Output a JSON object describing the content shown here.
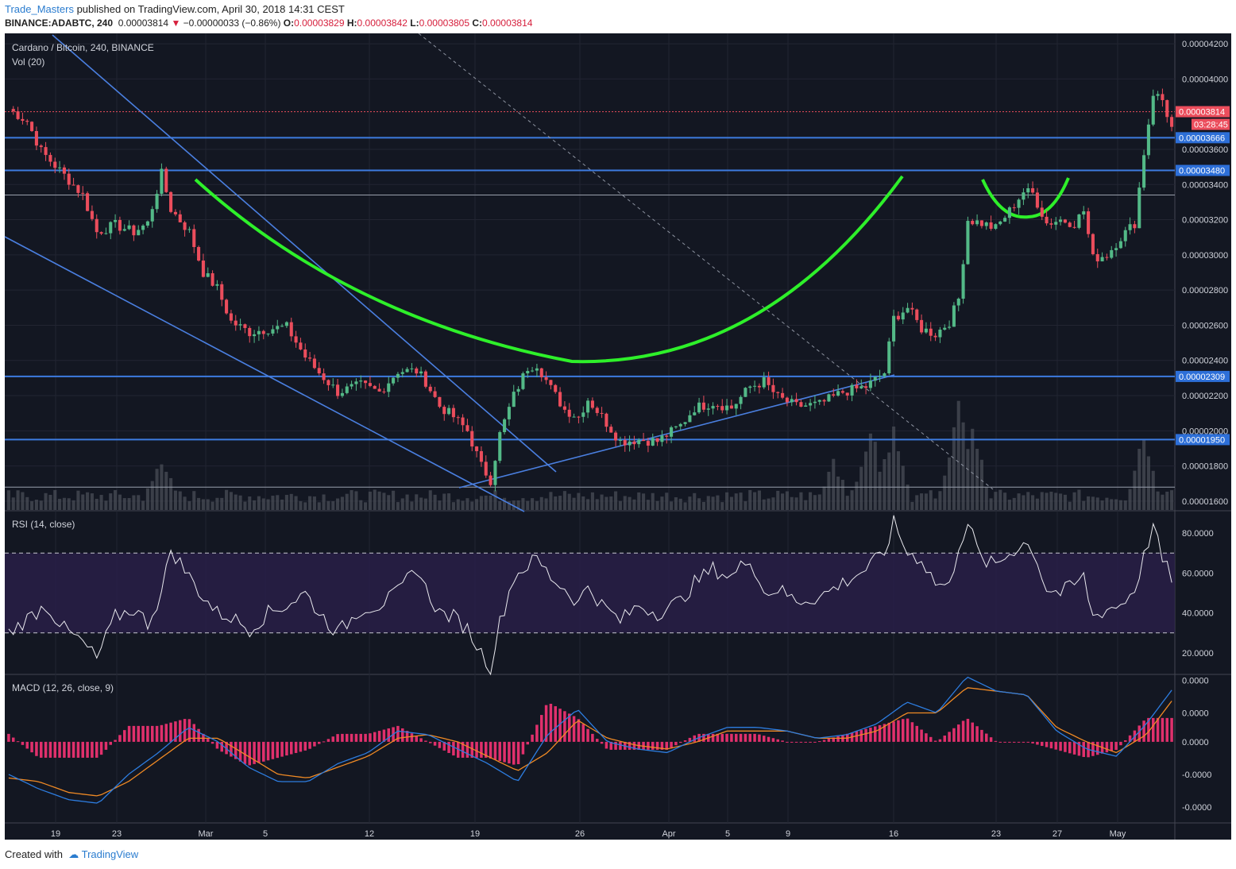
{
  "header": {
    "username": "Trade_Masters",
    "published_text": "published on TradingView.com, April 30, 2018 14:31 CEST",
    "symbol": "BINANCE:ADABTC, 240",
    "last_price": "0.00003814",
    "change": "−0.00000033 (−0.86%)",
    "o_label": "O:",
    "o_value": "0.00003829",
    "h_label": "H:",
    "h_value": "0.00003842",
    "l_label": "L:",
    "l_value": "0.00003805",
    "c_label": "C:",
    "c_value": "0.00003814"
  },
  "footer": {
    "created_with": "Created with",
    "brand": "TradingView"
  },
  "chart_data": [
    {
      "type": "candlestick",
      "title": "Cardano / Bitcoin, 240, BINANCE",
      "indicator_label": "Vol (20)",
      "ylim": [
        1.55e-05,
        4.25e-05
      ],
      "y_ticks": [
        "0.00004200",
        "0.00004000",
        "0.00003600",
        "0.00003400",
        "0.00003200",
        "0.00003000",
        "0.00002800",
        "0.00002600",
        "0.00002400",
        "0.00002200",
        "0.00002000",
        "0.00001800",
        "0.00001600"
      ],
      "x_ticks": [
        "19",
        "23",
        "Mar",
        "5",
        "12",
        "19",
        "26",
        "Apr",
        "5",
        "9",
        "16",
        "23",
        "27",
        "May"
      ],
      "price_path": [
        [
          0,
          3.83e-05
        ],
        [
          4,
          3.76e-05
        ],
        [
          7,
          3.59e-05
        ],
        [
          11,
          3.48e-05
        ],
        [
          16,
          3.34e-05
        ],
        [
          19,
          3.13e-05
        ],
        [
          23,
          3.17e-05
        ],
        [
          27,
          3.13e-05
        ],
        [
          30,
          3.18e-05
        ],
        [
          33,
          3.46e-05
        ],
        [
          35,
          3.26e-05
        ],
        [
          39,
          3.13e-05
        ],
        [
          42,
          2.9e-05
        ],
        [
          45,
          2.81e-05
        ],
        [
          48,
          2.62e-05
        ],
        [
          52,
          2.56e-05
        ],
        [
          56,
          2.58e-05
        ],
        [
          60,
          2.59e-05
        ],
        [
          64,
          2.42e-05
        ],
        [
          67,
          2.33e-05
        ],
        [
          71,
          2.22e-05
        ],
        [
          76,
          2.26e-05
        ],
        [
          80,
          2.22e-05
        ],
        [
          84,
          2.34e-05
        ],
        [
          88,
          2.34e-05
        ],
        [
          90,
          2.28e-05
        ],
        [
          93,
          2.14e-05
        ],
        [
          96,
          2.08e-05
        ],
        [
          99,
          2e-05
        ],
        [
          102,
          1.8e-05
        ],
        [
          104,
          1.72e-05
        ],
        [
          106,
          1.98e-05
        ],
        [
          109,
          2.2e-05
        ],
        [
          112,
          2.36e-05
        ],
        [
          114,
          2.38e-05
        ],
        [
          117,
          2.24e-05
        ],
        [
          120,
          2.12e-05
        ],
        [
          123,
          2.08e-05
        ],
        [
          125,
          2.18e-05
        ],
        [
          128,
          2.08e-05
        ],
        [
          132,
          1.94e-05
        ],
        [
          136,
          1.95e-05
        ],
        [
          140,
          1.94e-05
        ],
        [
          145,
          2.03e-05
        ],
        [
          148,
          2.13e-05
        ],
        [
          152,
          2.16e-05
        ],
        [
          156,
          2.13e-05
        ],
        [
          160,
          2.25e-05
        ],
        [
          163,
          2.28e-05
        ],
        [
          166,
          2.19e-05
        ],
        [
          170,
          2.14e-05
        ],
        [
          175,
          2.15e-05
        ],
        [
          180,
          2.22e-05
        ],
        [
          185,
          2.25e-05
        ],
        [
          189,
          2.33e-05
        ],
        [
          191,
          2.64e-05
        ],
        [
          194,
          2.7e-05
        ],
        [
          197,
          2.58e-05
        ],
        [
          200,
          2.55e-05
        ],
        [
          203,
          2.62e-05
        ],
        [
          205,
          2.75e-05
        ],
        [
          207,
          3.2e-05
        ],
        [
          210,
          3.18e-05
        ],
        [
          213,
          3.15e-05
        ],
        [
          216,
          3.25e-05
        ],
        [
          219,
          3.36e-05
        ],
        [
          221,
          3.35e-05
        ],
        [
          224,
          3.18e-05
        ],
        [
          227,
          3.2e-05
        ],
        [
          230,
          3.18e-05
        ],
        [
          232,
          3.25e-05
        ],
        [
          234,
          2.98e-05
        ],
        [
          237,
          3e-05
        ],
        [
          240,
          3.1e-05
        ],
        [
          243,
          3.18e-05
        ],
        [
          245,
          3.58e-05
        ],
        [
          247,
          3.92e-05
        ],
        [
          249,
          3.88e-05
        ],
        [
          251,
          3.72e-05
        ],
        [
          252,
          3.81e-05
        ]
      ],
      "volume_spikes": [
        [
          33,
          0.35
        ],
        [
          178,
          0.35
        ],
        [
          186,
          0.6
        ],
        [
          191,
          0.6
        ],
        [
          205,
          0.8
        ],
        [
          208,
          0.6
        ],
        [
          245,
          0.55
        ]
      ],
      "horizontal_levels": [
        "0.00003666",
        "0.00003480",
        "0.00002309",
        "0.00001950"
      ],
      "last_price_label": "0.00003814",
      "countdown": "03:28:45",
      "annotations": [
        "cup-arc",
        "handle-arc",
        "trendlines"
      ]
    },
    {
      "type": "line",
      "title": "RSI (14, close)",
      "ylim": [
        10,
        90
      ],
      "y_ticks": [
        "80.0000",
        "60.0000",
        "40.0000",
        "20.0000"
      ],
      "bands": [
        30,
        70
      ],
      "x": [
        0,
        8,
        12,
        16,
        19,
        23,
        27,
        30,
        33,
        35,
        39,
        42,
        45,
        48,
        52,
        56,
        60,
        64,
        67,
        71,
        76,
        80,
        84,
        88,
        90,
        93,
        96,
        99,
        102,
        104,
        106,
        109,
        112,
        114,
        117,
        120,
        123,
        125,
        128,
        132,
        136,
        140,
        145,
        148,
        152,
        156,
        160,
        163,
        166,
        170,
        175,
        180,
        185,
        189,
        191,
        194,
        197,
        200,
        203,
        205,
        207,
        210,
        213,
        216,
        219,
        221,
        224,
        227,
        230,
        232,
        234,
        237,
        240,
        243,
        245,
        247,
        249,
        251,
        252
      ],
      "values": [
        30,
        44,
        32,
        25,
        17,
        38,
        42,
        35,
        50,
        72,
        58,
        48,
        40,
        38,
        32,
        40,
        44,
        50,
        40,
        30,
        42,
        44,
        50,
        63,
        52,
        40,
        38,
        32,
        20,
        13,
        35,
        58,
        64,
        67,
        58,
        52,
        45,
        54,
        44,
        36,
        44,
        40,
        46,
        55,
        62,
        58,
        68,
        50,
        52,
        46,
        48,
        55,
        62,
        70,
        85,
        70,
        67,
        55,
        53,
        74,
        85,
        66,
        64,
        70,
        75,
        72,
        52,
        50,
        54,
        58,
        38,
        42,
        44,
        52,
        68,
        84,
        66,
        58,
        62
      ]
    },
    {
      "type": "line",
      "title": "MACD (12, 26, close, 9)",
      "ylim": [
        -2.2e-06,
        1.8e-06
      ],
      "y_ticks": [
        "0.0000",
        "0.0000",
        "0.0000",
        "-0.0000",
        "-0.0000"
      ],
      "series": [
        {
          "name": "MACD",
          "color": "#2d7de0",
          "values": [
            -9e-07,
            -1.3e-06,
            -1.6e-06,
            -1.7e-06,
            -9e-07,
            -3e-07,
            4e-07,
            0,
            -7e-07,
            -1.1e-06,
            -1.1e-06,
            -6e-07,
            -3e-07,
            3e-07,
            2e-07,
            -2e-07,
            -6e-07,
            -1.1e-06,
            2e-07,
            9e-07,
            0,
            -2e-07,
            -3e-07,
            1e-07,
            4e-07,
            4e-07,
            3e-07,
            1e-07,
            2e-07,
            5e-07,
            1.1e-06,
            8e-07,
            1.8e-06,
            1.4e-06,
            1.3e-06,
            3e-07,
            -2e-07,
            -4e-07,
            5e-07,
            1.6e-06
          ]
        },
        {
          "name": "Signal",
          "color": "#f08a24",
          "values": [
            -1e-06,
            -1.1e-06,
            -1.4e-06,
            -1.5e-06,
            -1.1e-06,
            -5e-07,
            1e-07,
            1e-07,
            -4e-07,
            -9e-07,
            -1e-06,
            -7e-07,
            -4e-07,
            1e-07,
            2e-07,
            0,
            -4e-07,
            -8e-07,
            -3e-07,
            6e-07,
            1e-07,
            -1e-07,
            -2e-07,
            0,
            3e-07,
            3e-07,
            3e-07,
            1e-07,
            1e-07,
            3e-07,
            8e-07,
            8e-07,
            1.5e-06,
            1.4e-06,
            1.3e-06,
            4e-07,
            0,
            -3e-07,
            2e-07,
            1.3e-06
          ]
        }
      ]
    }
  ]
}
